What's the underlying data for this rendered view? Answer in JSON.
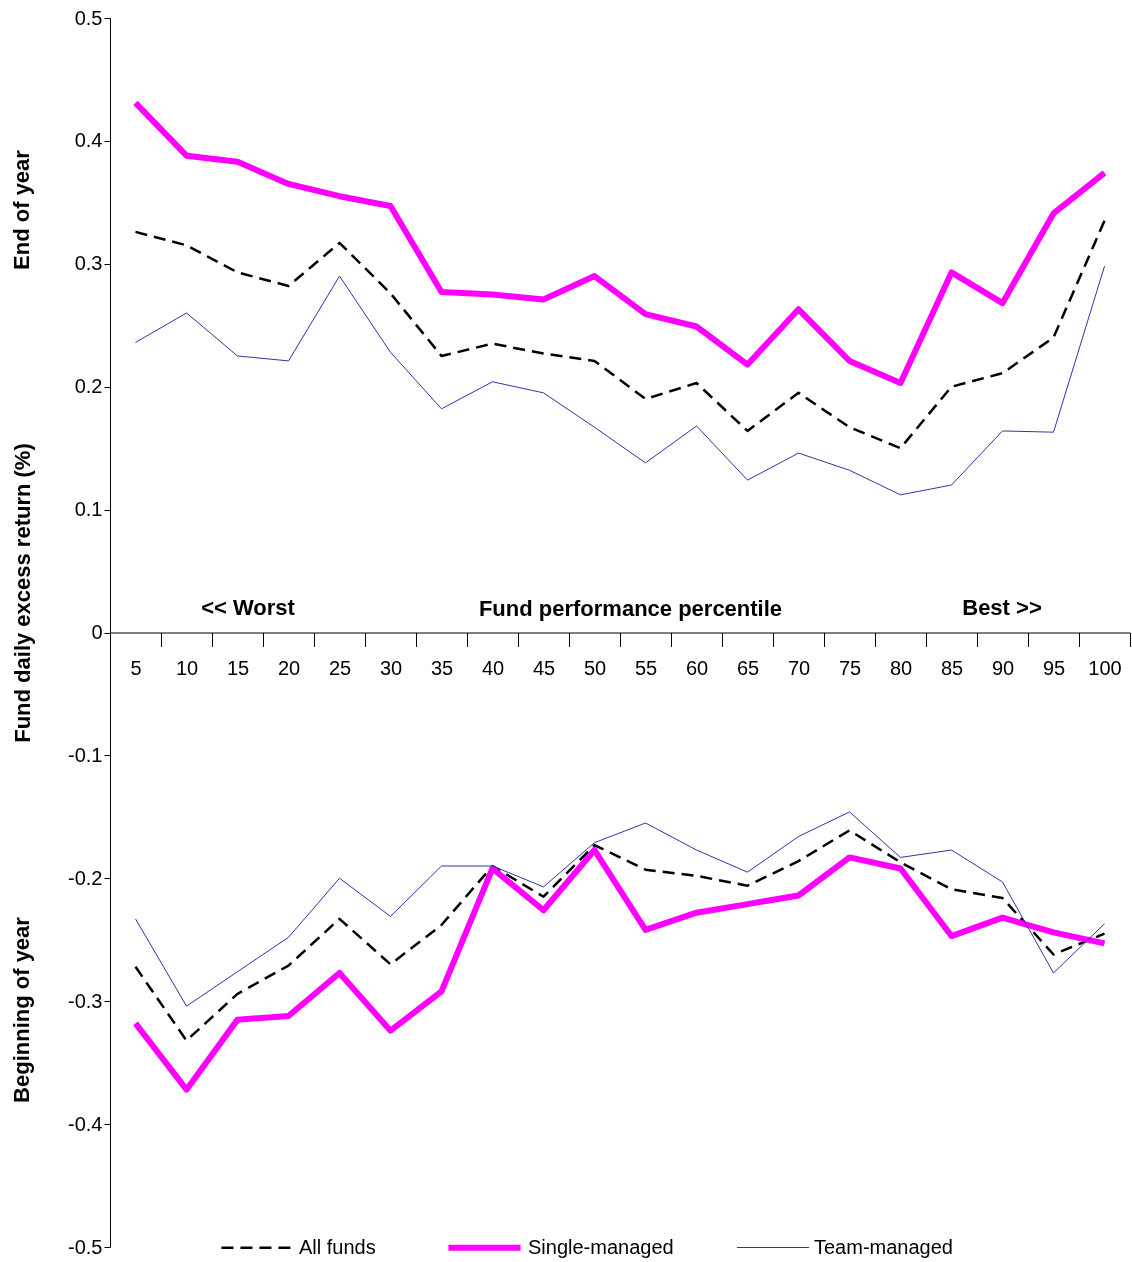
{
  "chart_data": {
    "type": "line",
    "xlabel": "Fund performance percentile",
    "ylabel": "Fund daily excess return (%)",
    "annotations": [
      "<< Worst",
      "Best >>",
      "End of year",
      "Beginning of year"
    ],
    "categories": [
      "5",
      "10",
      "15",
      "20",
      "25",
      "30",
      "35",
      "40",
      "45",
      "50",
      "55",
      "60",
      "65",
      "70",
      "75",
      "80",
      "85",
      "90",
      "95",
      "100"
    ],
    "ylim": [
      -0.5,
      0.5
    ],
    "yticks": [
      -0.5,
      -0.4,
      -0.3,
      -0.2,
      -0.1,
      0,
      0.1,
      0.2,
      0.3,
      0.4,
      0.5
    ],
    "grid": false,
    "legend": "bottom",
    "marker": "none",
    "series": [
      {
        "name": "All funds",
        "color": "#000000",
        "line_style": "dashed",
        "values": [
          0.326,
          0.315,
          0.293,
          0.282,
          0.317,
          0.276,
          0.225,
          0.235,
          0.227,
          0.221,
          0.19,
          0.203,
          0.164,
          0.195,
          0.167,
          0.15,
          0.2,
          0.211,
          0.24,
          0.335
        ]
      },
      {
        "name": "Single-managed",
        "color": "#ff00ff",
        "line_style": "solid",
        "values": [
          0.431,
          0.388,
          0.383,
          0.365,
          0.355,
          0.347,
          0.277,
          0.275,
          0.271,
          0.29,
          0.259,
          0.249,
          0.218,
          0.263,
          0.221,
          0.203,
          0.293,
          0.268,
          0.341,
          0.374
        ]
      },
      {
        "name": "Team-managed",
        "color": "#3333aa",
        "line_style": "solid",
        "values": [
          0.236,
          0.26,
          0.225,
          0.221,
          0.29,
          0.228,
          0.182,
          0.204,
          0.195,
          0.167,
          0.138,
          0.168,
          0.124,
          0.146,
          0.132,
          0.112,
          0.12,
          0.164,
          0.163,
          0.298
        ]
      },
      {
        "color": "#000000",
        "line_style": "dashed",
        "values": [
          -0.272,
          -0.332,
          -0.294,
          -0.271,
          -0.233,
          -0.27,
          -0.238,
          -0.19,
          -0.215,
          -0.173,
          -0.193,
          -0.198,
          -0.206,
          -0.186,
          -0.161,
          -0.187,
          -0.209,
          -0.216,
          -0.262,
          -0.245
        ]
      },
      {
        "color": "#ff00ff",
        "line_style": "solid",
        "values": [
          -0.318,
          -0.372,
          -0.315,
          -0.312,
          -0.277,
          -0.324,
          -0.292,
          -0.192,
          -0.226,
          -0.177,
          -0.242,
          -0.228,
          -0.221,
          -0.214,
          -0.183,
          -0.192,
          -0.247,
          -0.232,
          -0.244,
          -0.253
        ]
      },
      {
        "color": "#3333aa",
        "line_style": "solid",
        "values": [
          -0.233,
          -0.304,
          -0.276,
          -0.248,
          -0.2,
          -0.231,
          -0.19,
          -0.19,
          -0.207,
          -0.171,
          -0.155,
          -0.177,
          -0.195,
          -0.166,
          -0.146,
          -0.183,
          -0.177,
          -0.203,
          -0.277,
          -0.237
        ]
      }
    ]
  }
}
